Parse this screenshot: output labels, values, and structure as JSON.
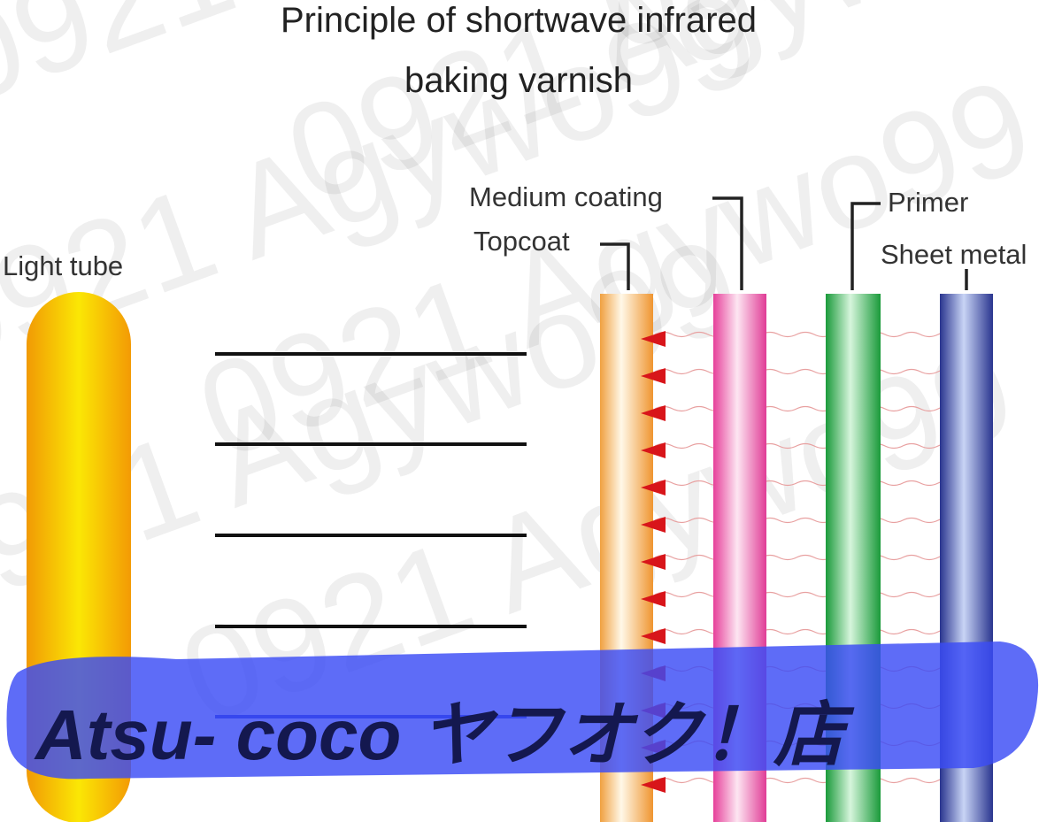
{
  "title": {
    "line1": "Principle of shortwave infrared",
    "line2": "baking varnish"
  },
  "labels": {
    "light_tube": "Light tube",
    "medium_coating": "Medium coating",
    "topcoat": "Topcoat",
    "primer": "Primer",
    "sheet_metal": "Sheet metal"
  },
  "watermark": {
    "faint": "0921 Agywo99",
    "banner": "Atsu- coco ヤフオク！店"
  }
}
